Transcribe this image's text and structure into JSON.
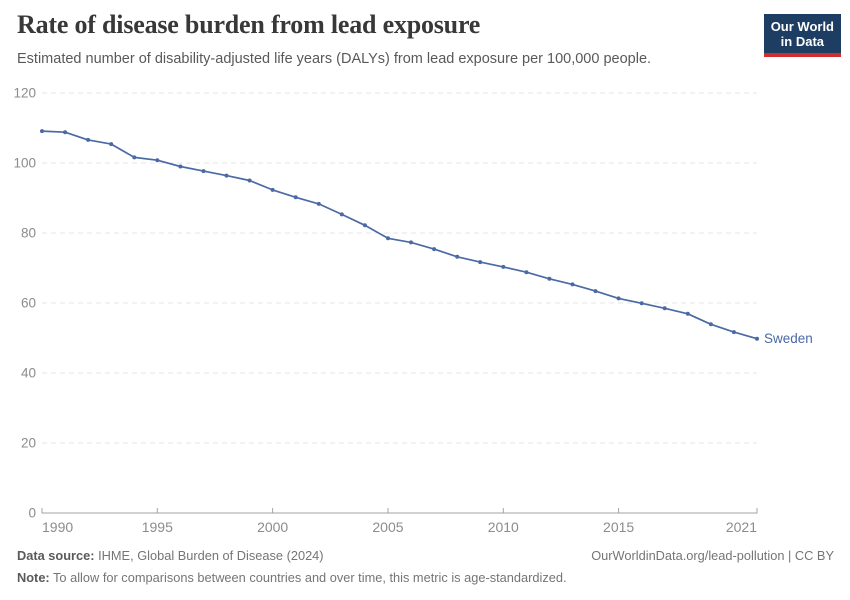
{
  "header": {
    "title": "Rate of disease burden from lead exposure",
    "subtitle": "Estimated number of disability-adjusted life years (DALYs) from lead exposure per 100,000 people."
  },
  "logo": {
    "line1": "Our World",
    "line2": "in Data",
    "bg_color": "#1d3d63",
    "accent_color": "#cf2e2e"
  },
  "colors": {
    "line": "#4a69a5",
    "grid": "#e5e5e5",
    "axis": "#a3a3a3",
    "tick_text": "#8c8c8c"
  },
  "chart_data": {
    "type": "line",
    "title": "Rate of disease burden from lead exposure",
    "xlabel": "",
    "ylabel": "",
    "xlim": [
      1990,
      2021
    ],
    "ylim": [
      0,
      120
    ],
    "x_ticks": [
      1990,
      1995,
      2000,
      2005,
      2010,
      2015,
      2021
    ],
    "y_ticks": [
      0,
      20,
      40,
      60,
      80,
      100,
      120
    ],
    "grid": "horizontal-dashed",
    "legend_position": "end-of-line",
    "end_label": "Sweden",
    "x": [
      1990,
      1991,
      1992,
      1993,
      1994,
      1995,
      1996,
      1997,
      1998,
      1999,
      2000,
      2001,
      2002,
      2003,
      2004,
      2005,
      2006,
      2007,
      2008,
      2009,
      2010,
      2011,
      2012,
      2013,
      2014,
      2015,
      2016,
      2017,
      2018,
      2019,
      2020,
      2021
    ],
    "series": [
      {
        "name": "Sweden",
        "color": "#4a69a5",
        "values": [
          109.1,
          108.8,
          106.6,
          105.4,
          101.6,
          100.8,
          99.0,
          97.7,
          96.4,
          95.0,
          92.3,
          90.2,
          88.3,
          85.3,
          82.2,
          78.5,
          77.3,
          75.4,
          73.2,
          71.7,
          70.3,
          68.8,
          66.9,
          65.3,
          63.4,
          61.3,
          59.9,
          58.5,
          56.9,
          53.9,
          51.7,
          49.8
        ]
      }
    ]
  },
  "footer": {
    "datasource_label": "Data source:",
    "datasource_value": " IHME, Global Burden of Disease (2024)",
    "rights": "OurWorldinData.org/lead-pollution | CC BY",
    "note_label": "Note:",
    "note_value": " To allow for comparisons between countries and over time, this metric is age-standardized."
  }
}
